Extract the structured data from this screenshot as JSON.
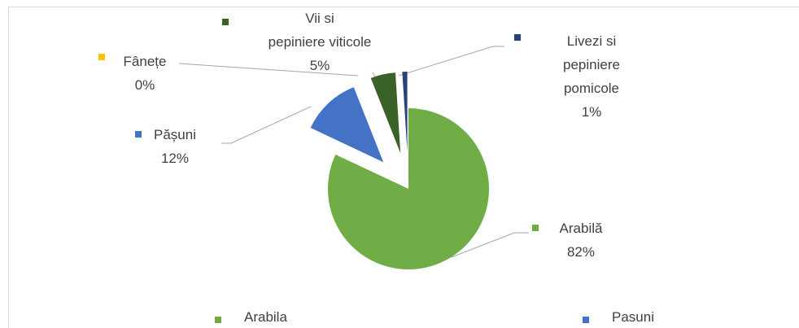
{
  "chart_data": {
    "type": "pie",
    "categories": [
      "Arabilă",
      "Pășuni",
      "Fânețe",
      "Vii si\npepiniere viticole",
      "Livezi si\npepiniere\npomicole"
    ],
    "values": [
      82,
      12,
      0,
      5,
      1
    ],
    "value_labels": [
      "82%",
      "12%",
      "0%",
      "5%",
      "1%"
    ],
    "colors": [
      "#70ad47",
      "#4472c4",
      "#ffc000",
      "#3b6226",
      "#264478"
    ],
    "exploded": [
      false,
      true,
      true,
      true,
      true
    ],
    "legend": [
      {
        "name": "Arabila",
        "color": "#70ad47"
      },
      {
        "name": "Pasuni",
        "color": "#4472c4"
      }
    ]
  }
}
